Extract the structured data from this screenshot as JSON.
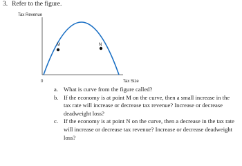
{
  "question": {
    "number": "3.",
    "prompt": "Refer to the figure."
  },
  "figure": {
    "y_axis_label": "Tax Revenue",
    "x_axis_label": "Tax Size",
    "origin_label": "0",
    "points": [
      {
        "label": "M"
      },
      {
        "label": "N"
      }
    ]
  },
  "items": [
    {
      "letter": "a.",
      "text": "What is curve from the figure called?"
    },
    {
      "letter": "b.",
      "text": "If the economy is at point M on the curve, then a small increase in the tax rate will increase or decrease tax revenue? Increase or decrease deadweight loss?"
    },
    {
      "letter": "c.",
      "text": "If the economy is at point N on the curve, then a decrease in the tax rate will increase or decrease tax revenue? Increase or decrease deadweight loss?"
    }
  ]
}
